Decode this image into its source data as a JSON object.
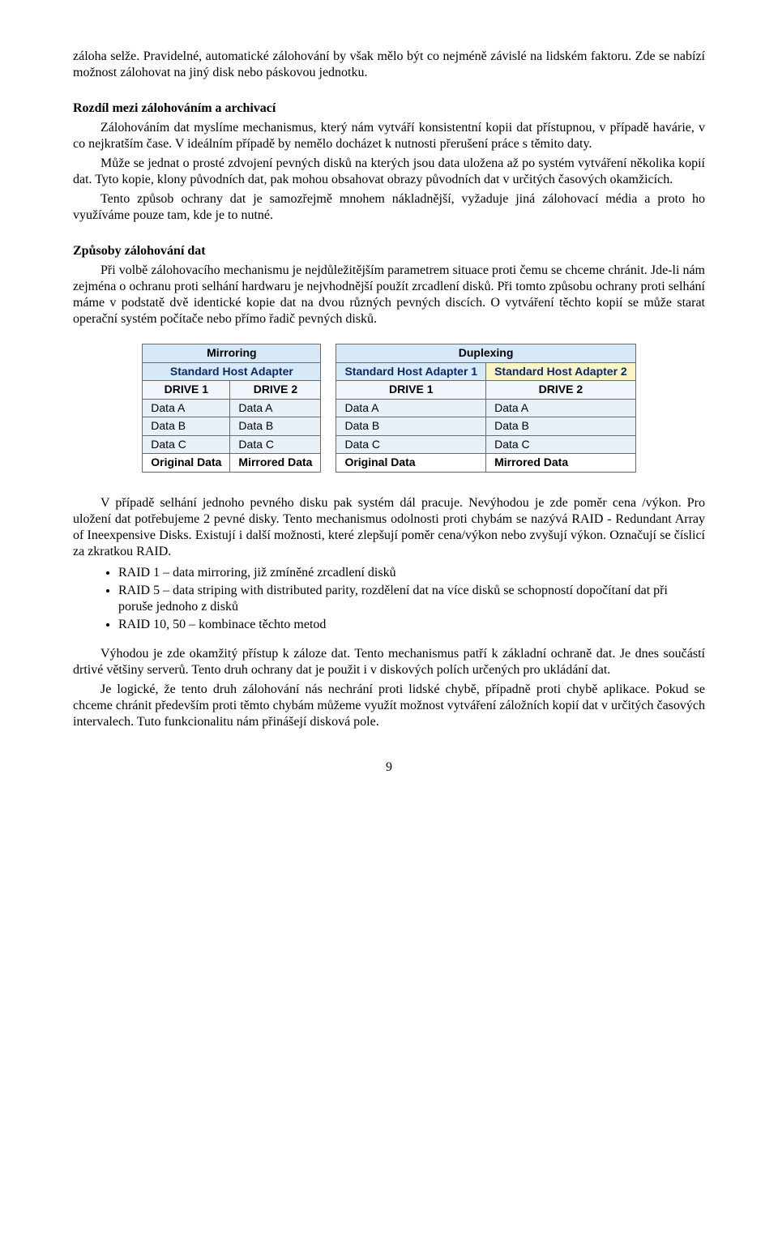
{
  "para": {
    "p1": "záloha selže. Pravidelné, automatické zálohování by však mělo být co nejméně závislé na lidském faktoru. Zde se nabízí možnost zálohovat na jiný disk nebo páskovou jednotku.",
    "h1": "Rozdíl mezi zálohováním a archivací",
    "p2": "Zálohováním dat myslíme mechanismus, který nám vytváří konsistentní kopii dat přístupnou, v případě havárie, v co nejkratším čase. V ideálním případě by nemělo docházet k nutnosti přerušení práce s těmito daty.",
    "p3": "Může se jednat o prosté zdvojení pevných disků na kterých jsou data uložena až po systém vytváření několika kopií dat. Tyto kopie, klony původních dat, pak mohou obsahovat obrazy původních dat v určitých časových okamžicích.",
    "p4": "Tento způsob ochrany dat je samozřejmě mnohem nákladnější, vyžaduje jiná zálohovací média a proto ho využíváme pouze tam, kde je to nutné.",
    "h2": "Způsoby zálohování dat",
    "p5": "Při volbě zálohovacího mechanismu je nejdůležitějším parametrem situace proti čemu se chceme chránit. Jde-li nám zejména o ochranu proti selhání hardwaru je nejvhodnější použít zrcadlení disků. Při tomto způsobu ochrany proti selhání máme v podstatě dvě identické kopie dat na dvou různých pevných discích. O vytváření těchto kopií se může starat operační systém počítače nebo přímo řadič pevných disků.",
    "p6": "V případě selhání jednoho pevného disku pak systém dál pracuje. Nevýhodou je zde poměr cena /výkon. Pro uložení dat potřebujeme 2 pevné disky. Tento mechanismus odolnosti proti chybám se nazývá RAID - Redundant Array of Ineexpensive Disks. Existují i další možnosti, které zlepšují poměr cena/výkon nebo zvyšují výkon. Označují se číslicí za zkratkou RAID.",
    "b1": "RAID 1 – data mirroring, již zmíněné zrcadlení disků",
    "b2": "RAID 5 – data striping with distributed parity, rozdělení dat na více disků se schopností dopočítaní dat při poruše jednoho z disků",
    "b3": "RAID 10, 50 – kombinace těchto metod",
    "p7": "Výhodou je zde okamžitý přístup k záloze dat. Tento mechanismus patří k základní ochraně dat. Je dnes součástí drtivé většiny serverů. Tento druh ochrany dat je použit i v diskových polích určených pro ukládání dat.",
    "p8": "Je logické, že tento druh zálohování nás nechrání proti lidské chybě, případně proti chybě aplikace. Pokud se chceme chránit především proti těmto chybám můžeme  využít možnost vytváření záložních kopií dat v určitých časových intervalech. Tuto funkcionalitu nám přinášejí disková pole."
  },
  "tables": {
    "mirroring": {
      "title": "Mirroring",
      "adapter": "Standard Host Adapter",
      "drives": [
        "DRIVE 1",
        "DRIVE 2"
      ],
      "rows": [
        [
          "Data A",
          "Data A"
        ],
        [
          "Data B",
          "Data B"
        ],
        [
          "Data C",
          "Data C"
        ]
      ],
      "foot": [
        "Original Data",
        "Mirrored Data"
      ]
    },
    "duplexing": {
      "title": "Duplexing",
      "adapters": [
        "Standard Host Adapter 1",
        "Standard Host Adapter 2"
      ],
      "drives": [
        "DRIVE 1",
        "DRIVE 2"
      ],
      "rows": [
        [
          "Data A",
          "Data A"
        ],
        [
          "Data B",
          "Data B"
        ],
        [
          "Data C",
          "Data C"
        ]
      ],
      "foot": [
        "Original Data",
        "Mirrored Data"
      ]
    },
    "colors": {
      "title_bg": "#d6e7f5",
      "adapter1_bg": "#d8eaf7",
      "adapter2_bg": "#f9f5c4",
      "drive_bg": "#f0f6fb",
      "cell_bg": "#e9f1f8",
      "border": "#6a6a6a"
    }
  },
  "page_number": "9"
}
